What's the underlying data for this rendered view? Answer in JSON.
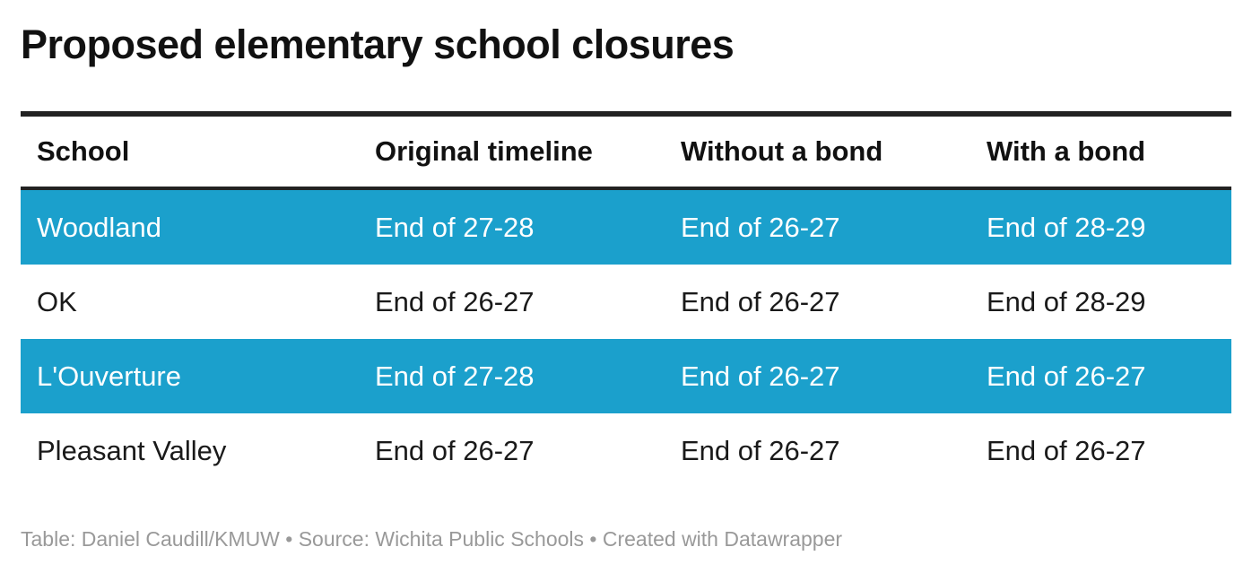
{
  "title": "Proposed elementary school closures",
  "colors": {
    "highlight_row": "#1ba0cc",
    "rule": "#222222",
    "footer_text": "#999999"
  },
  "chart_data": {
    "type": "table",
    "title": "Proposed elementary school closures",
    "columns": [
      "School",
      "Original timeline",
      "Without a bond",
      "With a bond"
    ],
    "rows": [
      {
        "cells": [
          "Woodland",
          "End of 27-28",
          "End of 26-27",
          "End of 28-29"
        ],
        "highlight": true
      },
      {
        "cells": [
          "OK",
          "End of 26-27",
          "End of 26-27",
          "End of 28-29"
        ],
        "highlight": false
      },
      {
        "cells": [
          "L'Ouverture",
          "End of 27-28",
          "End of 26-27",
          "End of 26-27"
        ],
        "highlight": true
      },
      {
        "cells": [
          "Pleasant Valley",
          "End of 26-27",
          "End of 26-27",
          "End of 26-27"
        ],
        "highlight": false
      }
    ]
  },
  "footer": "Table: Daniel Caudill/KMUW • Source: Wichita Public Schools • Created with Datawrapper"
}
